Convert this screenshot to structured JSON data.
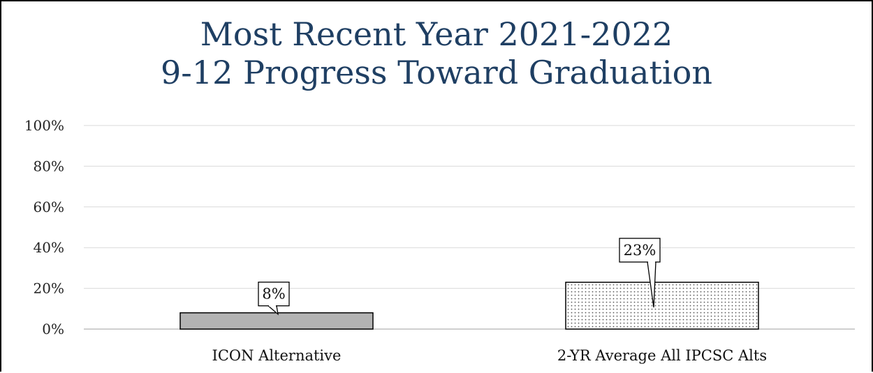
{
  "chart_data": {
    "type": "bar",
    "title_lines": [
      "Most Recent Year 2021-2022",
      "9-12 Progress Toward Graduation"
    ],
    "categories": [
      "ICON Alternative",
      "2-YR Average All IPCSC Alts"
    ],
    "values": [
      8,
      23
    ],
    "data_labels": [
      "8%",
      "23%"
    ],
    "ylim": [
      0,
      100
    ],
    "yticks": [
      0,
      20,
      40,
      60,
      80,
      100
    ],
    "ytick_labels": [
      "0%",
      "20%",
      "40%",
      "60%",
      "80%",
      "100%"
    ],
    "grid": true,
    "bar_fills": [
      "solid gray",
      "dotted pattern"
    ],
    "colors": {
      "title": "#1f3f63",
      "bar_solid": "#b3b3b3",
      "bar_dotted_bg": "#ffffff",
      "bar_dotted_dots": "#555555",
      "grid": "#d9d9d9",
      "axis": "#bfbfbf"
    }
  }
}
